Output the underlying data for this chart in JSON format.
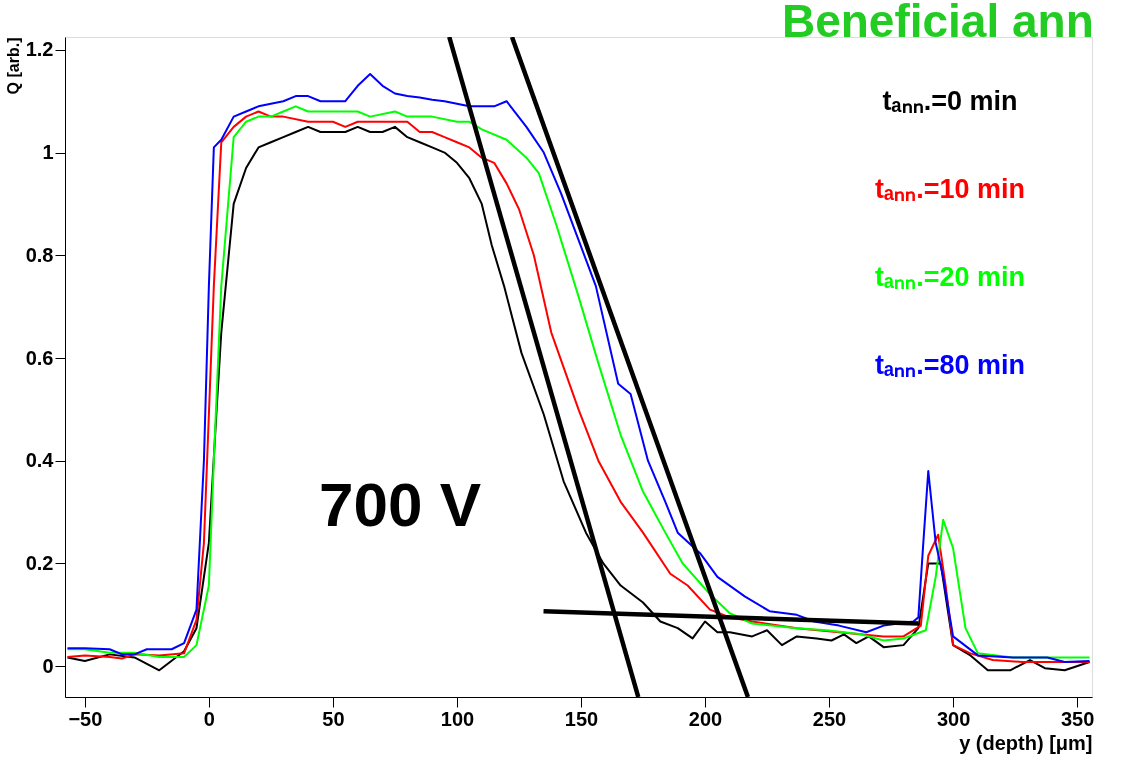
{
  "chart_data": {
    "type": "line",
    "title": "Beneficial ann",
    "xlabel": "y (depth) [μm]",
    "ylabel": "Q [arb.]",
    "xlim": [
      -58,
      356
    ],
    "ylim": [
      -0.06,
      1.225
    ],
    "xticks": [
      -50,
      0,
      50,
      100,
      150,
      200,
      250,
      300,
      350
    ],
    "yticks": [
      0,
      0.2,
      0.4,
      0.6,
      0.8,
      1,
      1.2
    ],
    "grid": false,
    "legend": "top right",
    "annotations": [
      "700 V"
    ],
    "series": [
      {
        "name": "tₐₙₙ.=0 min",
        "color": "#000000",
        "x": [
          -57,
          -50,
          -40,
          -30,
          -20,
          -10,
          -5,
          0,
          3,
          5,
          10,
          15,
          20,
          25,
          30,
          35,
          40,
          45,
          55,
          60,
          65,
          70,
          75,
          80,
          85,
          90,
          95,
          100,
          105,
          110,
          114,
          119,
          126,
          135,
          143,
          152,
          159,
          166,
          175,
          182,
          189,
          195,
          200,
          205,
          210,
          219,
          225,
          231,
          237,
          245,
          251,
          256,
          261,
          266,
          272,
          280,
          286,
          290,
          295,
          300,
          307,
          314,
          323,
          331,
          337,
          345,
          355
        ],
        "values": [
          0.017,
          0.01,
          0.023,
          0.017,
          -0.008,
          0.029,
          0.074,
          0.24,
          0.49,
          0.65,
          0.9,
          0.97,
          1.01,
          1.02,
          1.03,
          1.04,
          1.05,
          1.04,
          1.04,
          1.05,
          1.04,
          1.04,
          1.05,
          1.03,
          1.02,
          1.01,
          1.0,
          0.98,
          0.95,
          0.9,
          0.82,
          0.74,
          0.61,
          0.49,
          0.36,
          0.26,
          0.2,
          0.157,
          0.124,
          0.087,
          0.074,
          0.054,
          0.087,
          0.066,
          0.066,
          0.058,
          0.07,
          0.041,
          0.058,
          0.054,
          0.05,
          0.062,
          0.045,
          0.058,
          0.037,
          0.041,
          0.074,
          0.2,
          0.2,
          0.041,
          0.021,
          -0.008,
          -0.008,
          0.012,
          -0.004,
          -0.008,
          0.008
        ]
      },
      {
        "name": "tₐₙₙ.=10 min",
        "color": "#ff0000",
        "x": [
          -57,
          -50,
          -40,
          -35,
          -30,
          -20,
          -10,
          -5,
          -2,
          0,
          2,
          5,
          10,
          15,
          20,
          25,
          30,
          40,
          50,
          55,
          60,
          70,
          80,
          85,
          90,
          95,
          100,
          105,
          110,
          115,
          120,
          125,
          131,
          138,
          149,
          157,
          166,
          175,
          186,
          193,
          202,
          210,
          219,
          237,
          254,
          272,
          280,
          287,
          290,
          294,
          297,
          300,
          307,
          316,
          328,
          342,
          355
        ],
        "values": [
          0.018,
          0.021,
          0.018,
          0.015,
          0.023,
          0.021,
          0.025,
          0.09,
          0.24,
          0.49,
          0.74,
          1.02,
          1.05,
          1.07,
          1.08,
          1.07,
          1.07,
          1.06,
          1.06,
          1.05,
          1.06,
          1.06,
          1.06,
          1.04,
          1.04,
          1.03,
          1.02,
          1.01,
          0.99,
          0.98,
          0.94,
          0.89,
          0.8,
          0.65,
          0.5,
          0.4,
          0.32,
          0.26,
          0.18,
          0.157,
          0.11,
          0.095,
          0.087,
          0.074,
          0.066,
          0.058,
          0.058,
          0.079,
          0.215,
          0.256,
          0.157,
          0.041,
          0.025,
          0.012,
          0.008,
          0.008,
          0.008
        ]
      },
      {
        "name": "tₐₙₙ.=20 min",
        "color": "#00ff00",
        "x": [
          -57,
          -50,
          -40,
          -30,
          -20,
          -10,
          -5,
          0,
          2,
          5,
          10,
          15,
          20,
          25,
          30,
          35,
          40,
          50,
          60,
          65,
          75,
          80,
          90,
          100,
          105,
          110,
          120,
          128,
          133,
          140,
          149,
          157,
          166,
          175,
          184,
          191,
          202,
          210,
          219,
          237,
          249,
          263,
          272,
          280,
          289,
          293,
          296,
          300,
          305,
          310,
          324,
          342,
          355
        ],
        "values": [
          0.033,
          0.033,
          0.026,
          0.026,
          0.018,
          0.018,
          0.041,
          0.157,
          0.4,
          0.74,
          1.03,
          1.06,
          1.07,
          1.07,
          1.08,
          1.09,
          1.08,
          1.08,
          1.08,
          1.07,
          1.08,
          1.07,
          1.07,
          1.06,
          1.06,
          1.045,
          1.025,
          0.99,
          0.96,
          0.86,
          0.72,
          0.59,
          0.45,
          0.34,
          0.26,
          0.2,
          0.14,
          0.103,
          0.083,
          0.074,
          0.07,
          0.062,
          0.05,
          0.054,
          0.07,
          0.174,
          0.285,
          0.23,
          0.074,
          0.025,
          0.017,
          0.017,
          0.017
        ]
      },
      {
        "name": "tₐₙₙ.=80 min",
        "color": "#0000ff",
        "x": [
          -57,
          -50,
          -40,
          -35,
          -30,
          -25,
          -15,
          -10,
          -5,
          -2,
          0,
          2,
          5,
          10,
          15,
          20,
          30,
          35,
          40,
          45,
          50,
          55,
          60,
          65,
          70,
          75,
          80,
          85,
          90,
          95,
          100,
          105,
          110,
          115,
          120,
          128,
          135,
          142,
          149,
          156,
          165,
          170,
          177,
          184,
          189,
          198,
          205,
          216,
          226,
          237,
          244,
          254,
          265,
          272,
          284,
          286,
          288,
          290,
          293,
          296,
          300,
          310,
          324,
          338,
          345,
          355
        ],
        "values": [
          0.035,
          0.035,
          0.033,
          0.023,
          0.023,
          0.033,
          0.033,
          0.045,
          0.11,
          0.4,
          0.74,
          1.01,
          1.025,
          1.07,
          1.08,
          1.09,
          1.1,
          1.11,
          1.11,
          1.1,
          1.1,
          1.1,
          1.13,
          1.153,
          1.13,
          1.115,
          1.11,
          1.107,
          1.103,
          1.1,
          1.095,
          1.09,
          1.09,
          1.09,
          1.1,
          1.05,
          1.0,
          0.92,
          0.83,
          0.74,
          0.55,
          0.53,
          0.4,
          0.32,
          0.26,
          0.22,
          0.174,
          0.136,
          0.107,
          0.1,
          0.087,
          0.079,
          0.066,
          0.079,
          0.087,
          0.095,
          0.24,
          0.38,
          0.24,
          0.174,
          0.058,
          0.021,
          0.017,
          0.017,
          0.008,
          0.01
        ]
      },
      {
        "type": "line",
        "color": "#000000",
        "x": [
          96.9,
          173.1
        ],
        "values": [
          1.225,
          -0.06
        ]
      },
      {
        "type": "line",
        "color": "#000000",
        "x": [
          122.2,
          217.3
        ],
        "values": [
          1.225,
          -0.06
        ]
      },
      {
        "type": "line",
        "color": "#000000",
        "x": [
          134.9,
          286
        ],
        "values": [
          0.107,
          0.083
        ]
      }
    ]
  }
}
